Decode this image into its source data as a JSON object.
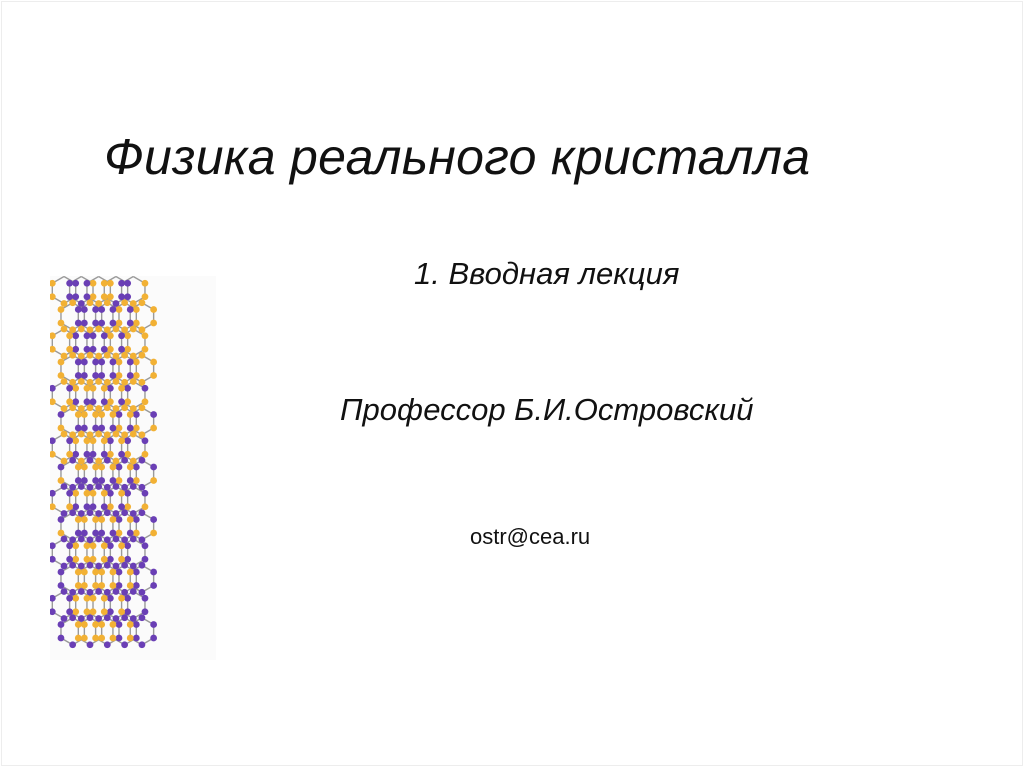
{
  "slide": {
    "title": "Физика реального кристалла",
    "subtitle": "1. Вводная лекция",
    "author": "Профессор  Б.И.Островский",
    "email": "ostr@cea.ru"
  },
  "illustration": {
    "icon": "nanotube-lattice-icon",
    "atom_colors": [
      "#6a3fb5",
      "#f2b134"
    ],
    "bond_color": "#9a9a9a"
  }
}
